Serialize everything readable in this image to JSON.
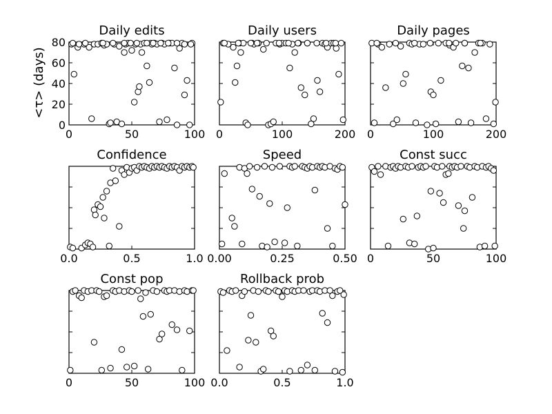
{
  "figure": {
    "ylabel": "<τ> (days)",
    "marker_style": "open-circle",
    "colors": {
      "marker_edge": "#000000",
      "marker_face": "#ffffff",
      "axes": "#000000",
      "background": "#ffffff"
    }
  },
  "chart_data": [
    {
      "type": "scatter",
      "title": "Daily edits",
      "xlim": [
        0,
        100
      ],
      "ylim": [
        0,
        80
      ],
      "xticks": [
        "0",
        "50",
        "100"
      ],
      "yticks": [
        "0",
        "20",
        "40",
        "60",
        "80"
      ],
      "series": [
        {
          "x": [
            2,
            4,
            7,
            12,
            16,
            18,
            20,
            23,
            26,
            28,
            30,
            32,
            33,
            36,
            38,
            40,
            42,
            44,
            45,
            47,
            50,
            52,
            53,
            55,
            56,
            57,
            58,
            60,
            62,
            64,
            65,
            66,
            68,
            70,
            72,
            74,
            76,
            78,
            80,
            82,
            84,
            86,
            88,
            90,
            92,
            94,
            96,
            98,
            3,
            8,
            13,
            27,
            35,
            44,
            49,
            54,
            62,
            67,
            73,
            79,
            86,
            92,
            97
          ],
          "y": [
            78,
            49,
            75,
            78,
            75,
            6,
            78,
            78,
            79,
            77,
            78,
            1,
            2,
            78,
            3,
            76,
            1,
            70,
            78,
            79,
            72,
            22,
            78,
            32,
            37,
            78,
            70,
            79,
            57,
            41,
            79,
            78,
            79,
            78,
            3,
            79,
            78,
            5,
            79,
            79,
            55,
            0,
            74,
            79,
            29,
            43,
            0,
            79,
            79,
            78,
            79,
            79,
            79,
            79,
            79,
            79,
            79,
            79,
            79,
            79,
            79,
            78,
            78
          ]
        }
      ]
    },
    {
      "type": "scatter",
      "title": "Daily users",
      "xlim": [
        0,
        200
      ],
      "ylim": [
        0,
        80
      ],
      "xticks": [
        "0",
        "100",
        "200"
      ],
      "yticks": [],
      "series": [
        {
          "x": [
            2,
            6,
            14,
            22,
            25,
            28,
            32,
            34,
            38,
            42,
            45,
            52,
            55,
            62,
            70,
            78,
            82,
            86,
            90,
            96,
            100,
            106,
            112,
            116,
            120,
            126,
            130,
            136,
            140,
            146,
            150,
            156,
            160,
            164,
            168,
            172,
            178,
            182,
            186,
            190,
            194,
            197,
            8,
            30,
            50,
            60,
            75,
            95,
            110,
            125,
            140,
            155,
            170,
            185
          ],
          "y": [
            22,
            79,
            78,
            75,
            41,
            57,
            79,
            70,
            79,
            2,
            0,
            79,
            78,
            79,
            73,
            0,
            1,
            3,
            79,
            78,
            79,
            79,
            55,
            78,
            70,
            79,
            36,
            29,
            79,
            1,
            6,
            43,
            32,
            79,
            78,
            75,
            79,
            79,
            74,
            49,
            79,
            5,
            79,
            79,
            79,
            79,
            79,
            79,
            79,
            79,
            79,
            79,
            79,
            79
          ]
        }
      ]
    },
    {
      "type": "scatter",
      "title": "Daily pages",
      "xlim": [
        0,
        200
      ],
      "ylim": [
        0,
        80
      ],
      "xticks": [
        "0",
        "100",
        "200"
      ],
      "yticks": [],
      "series": [
        {
          "x": [
            2,
            6,
            12,
            18,
            24,
            30,
            36,
            42,
            48,
            52,
            56,
            62,
            66,
            72,
            78,
            84,
            90,
            96,
            100,
            104,
            108,
            112,
            120,
            126,
            132,
            136,
            140,
            146,
            150,
            156,
            160,
            166,
            172,
            178,
            184,
            190,
            196,
            199,
            10,
            40,
            70,
            95,
            125,
            150,
            175
          ],
          "y": [
            79,
            2,
            78,
            75,
            36,
            78,
            1,
            5,
            76,
            40,
            49,
            79,
            78,
            2,
            78,
            78,
            0,
            32,
            29,
            1,
            79,
            43,
            79,
            77,
            75,
            79,
            3,
            57,
            79,
            55,
            2,
            70,
            79,
            79,
            6,
            78,
            1,
            22,
            79,
            79,
            79,
            79,
            79,
            79,
            79
          ]
        }
      ]
    },
    {
      "type": "scatter",
      "title": "Confidence",
      "xlim": [
        0,
        1
      ],
      "ylim": [
        0,
        80
      ],
      "xticks": [
        "0.0",
        "0.5",
        "1.0"
      ],
      "yticks": [],
      "series": [
        {
          "x": [
            0.01,
            0.03,
            0.1,
            0.13,
            0.15,
            0.17,
            0.19,
            0.2,
            0.21,
            0.23,
            0.25,
            0.27,
            0.28,
            0.3,
            0.32,
            0.33,
            0.35,
            0.37,
            0.4,
            0.42,
            0.44,
            0.46,
            0.48,
            0.5,
            0.52,
            0.54,
            0.56,
            0.58,
            0.6,
            0.62,
            0.64,
            0.66,
            0.68,
            0.7,
            0.72,
            0.74,
            0.76,
            0.78,
            0.8,
            0.82,
            0.84,
            0.86,
            0.88,
            0.9,
            0.92,
            0.94,
            0.96,
            0.98,
            0.99
          ],
          "y": [
            2,
            1,
            1,
            4,
            6,
            5,
            2,
            38,
            33,
            43,
            41,
            50,
            30,
            56,
            3,
            64,
            78,
            66,
            22,
            76,
            72,
            79,
            74,
            78,
            79,
            76,
            80,
            79,
            80,
            79,
            78,
            80,
            79,
            80,
            79,
            80,
            79,
            78,
            80,
            79,
            80,
            79,
            76,
            80,
            79,
            80,
            79,
            80,
            79
          ]
        }
      ]
    },
    {
      "type": "scatter",
      "title": "Speed",
      "xlim": [
        0,
        0.5
      ],
      "ylim": [
        0,
        80
      ],
      "xticks": [
        "0.00",
        "0.25",
        "0.50"
      ],
      "yticks": [],
      "series": [
        {
          "x": [
            0.01,
            0.02,
            0.05,
            0.06,
            0.08,
            0.09,
            0.1,
            0.11,
            0.12,
            0.13,
            0.15,
            0.16,
            0.17,
            0.18,
            0.19,
            0.2,
            0.21,
            0.22,
            0.24,
            0.26,
            0.27,
            0.28,
            0.29,
            0.3,
            0.31,
            0.33,
            0.34,
            0.35,
            0.36,
            0.37,
            0.38,
            0.39,
            0.4,
            0.41,
            0.42,
            0.43,
            0.44,
            0.45,
            0.46,
            0.47,
            0.48,
            0.49,
            0.5
          ],
          "y": [
            5,
            73,
            30,
            22,
            79,
            5,
            78,
            73,
            80,
            58,
            79,
            51,
            3,
            80,
            2,
            44,
            79,
            7,
            80,
            6,
            40,
            80,
            79,
            80,
            3,
            80,
            79,
            78,
            80,
            79,
            57,
            80,
            79,
            80,
            79,
            20,
            80,
            3,
            78,
            77,
            80,
            79,
            43
          ]
        }
      ]
    },
    {
      "type": "scatter",
      "title": "Const succ",
      "xlim": [
        0,
        100
      ],
      "ylim": [
        0,
        80
      ],
      "xticks": [
        "0",
        "50",
        "100"
      ],
      "yticks": [],
      "series": [
        {
          "x": [
            1,
            3,
            6,
            8,
            12,
            14,
            16,
            18,
            20,
            22,
            24,
            26,
            28,
            30,
            31,
            33,
            35,
            37,
            38,
            40,
            42,
            44,
            46,
            48,
            50,
            51,
            53,
            55,
            57,
            58,
            60,
            62,
            63,
            65,
            67,
            69,
            70,
            72,
            74,
            75,
            77,
            79,
            81,
            83,
            85,
            87,
            89,
            91,
            92,
            94,
            96,
            98,
            99
          ],
          "y": [
            79,
            75,
            80,
            72,
            80,
            3,
            79,
            80,
            78,
            80,
            79,
            29,
            80,
            79,
            6,
            80,
            5,
            32,
            79,
            80,
            79,
            80,
            0,
            56,
            1,
            80,
            79,
            54,
            80,
            45,
            72,
            73,
            80,
            79,
            80,
            79,
            42,
            80,
            20,
            37,
            80,
            79,
            50,
            80,
            79,
            2,
            80,
            3,
            79,
            80,
            78,
            76,
            3
          ]
        }
      ]
    },
    {
      "type": "scatter",
      "title": "Const pop",
      "xlim": [
        0,
        100
      ],
      "ylim": [
        0,
        80
      ],
      "xticks": [
        "0",
        "50",
        "100"
      ],
      "yticks": [],
      "series": [
        {
          "x": [
            1,
            3,
            5,
            8,
            10,
            12,
            15,
            18,
            20,
            22,
            24,
            26,
            28,
            30,
            33,
            35,
            37,
            40,
            42,
            44,
            46,
            48,
            50,
            52,
            55,
            57,
            59,
            61,
            63,
            65,
            67,
            70,
            72,
            74,
            76,
            78,
            80,
            82,
            84,
            86,
            88,
            90,
            92,
            94,
            96,
            98,
            99
          ],
          "y": [
            3,
            79,
            80,
            75,
            73,
            80,
            79,
            80,
            30,
            80,
            79,
            3,
            74,
            75,
            5,
            80,
            79,
            80,
            23,
            79,
            6,
            80,
            79,
            7,
            80,
            72,
            55,
            78,
            4,
            57,
            80,
            79,
            33,
            38,
            80,
            79,
            80,
            47,
            80,
            42,
            79,
            3,
            80,
            79,
            41,
            80,
            80
          ]
        }
      ]
    },
    {
      "type": "scatter",
      "title": "Rollback prob",
      "xlim": [
        0,
        1
      ],
      "ylim": [
        0,
        80
      ],
      "xticks": [
        "0.0",
        "0.5",
        "1.0"
      ],
      "yticks": [],
      "series": [
        {
          "x": [
            0.01,
            0.03,
            0.06,
            0.08,
            0.1,
            0.13,
            0.16,
            0.18,
            0.2,
            0.23,
            0.25,
            0.27,
            0.29,
            0.31,
            0.33,
            0.35,
            0.37,
            0.39,
            0.41,
            0.43,
            0.45,
            0.47,
            0.5,
            0.52,
            0.54,
            0.56,
            0.58,
            0.6,
            0.63,
            0.65,
            0.67,
            0.7,
            0.72,
            0.74,
            0.76,
            0.78,
            0.8,
            0.82,
            0.84,
            0.86,
            0.88,
            0.9,
            0.92,
            0.94,
            0.96,
            0.98,
            0.99
          ],
          "y": [
            79,
            78,
            22,
            80,
            79,
            80,
            6,
            75,
            79,
            32,
            56,
            80,
            30,
            79,
            2,
            4,
            80,
            79,
            41,
            36,
            80,
            79,
            74,
            80,
            79,
            2,
            80,
            79,
            80,
            3,
            80,
            8,
            79,
            80,
            3,
            80,
            79,
            58,
            80,
            49,
            80,
            75,
            2,
            79,
            80,
            1,
            76
          ]
        }
      ]
    }
  ]
}
